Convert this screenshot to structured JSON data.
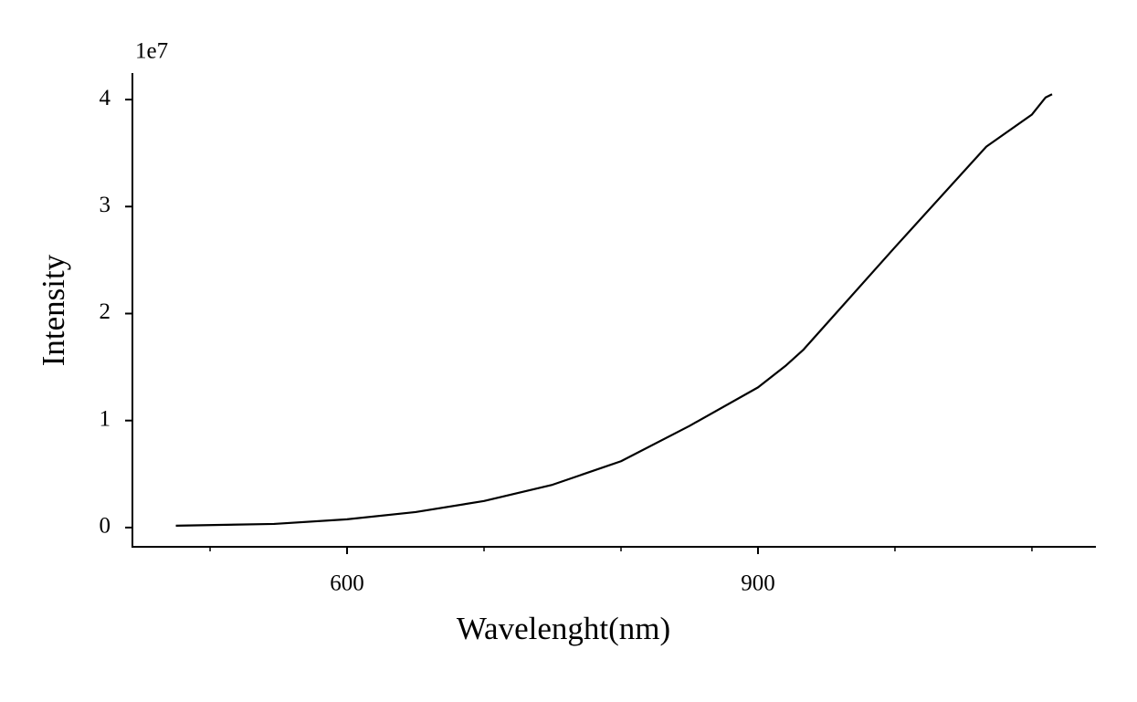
{
  "chart_data": {
    "type": "line",
    "x_label": "Wavelenght(nm)",
    "y_label": "Intensity",
    "y_offset_label": "1e7",
    "x": [
      475,
      546.7,
      600,
      650,
      700,
      750,
      800,
      850,
      900,
      920,
      933,
      1000,
      1066.7,
      1100,
      1110,
      1114.7
    ],
    "series": [
      {
        "color": "#000000",
        "values": [
          170000,
          340000,
          770000,
          1450000,
          2480000,
          4000000,
          6200000,
          9500000,
          13100000,
          15100000,
          16600000,
          26200000,
          35600000,
          38600000,
          40200000,
          40500000
        ]
      }
    ],
    "xlim": [
      443.3,
      1146.7
    ],
    "xticks": [
      600,
      900
    ],
    "xminorticks": [
      500,
      700,
      800,
      1000,
      1100
    ],
    "ylim": [
      -1800000,
      42480000
    ],
    "yticks": [
      {
        "value": 0,
        "label": "0"
      },
      {
        "value": 10000000,
        "label": "1"
      },
      {
        "value": 20000000,
        "label": "2"
      },
      {
        "value": 30000000,
        "label": "3"
      },
      {
        "value": 40000000,
        "label": "4"
      }
    ],
    "grid": false
  }
}
